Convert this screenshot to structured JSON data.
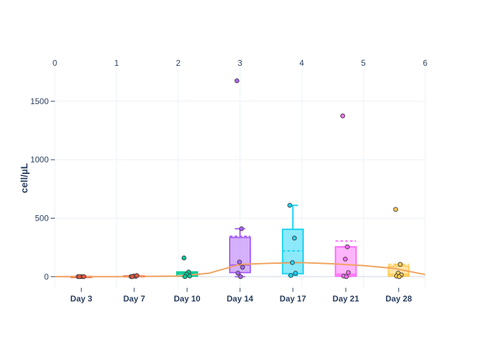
{
  "chart_data": {
    "type": "box",
    "xlabel": "",
    "ylabel": "cell/µL",
    "categories": [
      "Day 3",
      "Day 7",
      "Day 10",
      "Day 14",
      "Day 17",
      "Day 21",
      "Day 28"
    ],
    "ylim": [
      -95,
      1780
    ],
    "y_ticks": [
      0,
      500,
      1000,
      1500
    ],
    "y_tick_labels": [
      "0",
      "500",
      "1000",
      "1500"
    ],
    "secondary_x": {
      "range": [
        0,
        6
      ],
      "ticks": [
        0,
        1,
        2,
        3,
        4,
        5,
        6
      ],
      "tick_labels": [
        "0",
        "1",
        "2",
        "3",
        "4",
        "5",
        "6"
      ]
    },
    "grid": true,
    "series": [
      {
        "category": "Day 3",
        "color": "#ef553b",
        "q1": 0,
        "median": 0,
        "q3": 0,
        "lower_fence": 0,
        "upper_fence": 0,
        "mean": 0,
        "points": [
          0,
          0,
          0,
          0,
          0
        ]
      },
      {
        "category": "Day 7",
        "color": "#ef553b",
        "q1": 0,
        "median": 2,
        "q3": 6,
        "lower_fence": 0,
        "upper_fence": 10,
        "mean": 4,
        "points": [
          0,
          2,
          5,
          10,
          0
        ]
      },
      {
        "category": "Day 10",
        "color": "#00cc96",
        "q1": 5,
        "median": 25,
        "q3": 40,
        "lower_fence": 0,
        "upper_fence": 40,
        "mean": 30,
        "points": [
          160,
          40,
          20,
          5,
          0
        ]
      },
      {
        "category": "Day 14",
        "color": "#ab63fa",
        "q1": 35,
        "median": 100,
        "q3": 335,
        "lower_fence": 0,
        "upper_fence": 410,
        "mean": 345,
        "points": [
          1675,
          410,
          125,
          80,
          30,
          0
        ]
      },
      {
        "category": "Day 17",
        "color": "#19d3f3",
        "q1": 25,
        "median": 120,
        "q3": 405,
        "lower_fence": 10,
        "upper_fence": 610,
        "mean": 220,
        "points": [
          610,
          330,
          120,
          30,
          10
        ]
      },
      {
        "category": "Day 21",
        "color": "#ff6bfa",
        "q1": 5,
        "median": 20,
        "q3": 255,
        "lower_fence": 0,
        "upper_fence": 255,
        "mean": 305,
        "points": [
          1375,
          255,
          150,
          35,
          5,
          0
        ]
      },
      {
        "category": "Day 28",
        "color": "#fecb52",
        "q1": 5,
        "median": 20,
        "q3": 90,
        "lower_fence": 0,
        "upper_fence": 105,
        "mean": 105,
        "points": [
          575,
          105,
          30,
          15,
          5,
          0
        ]
      }
    ],
    "trend_line": {
      "color": "#f2a15b",
      "x": [
        0,
        0.5,
        1,
        1.5,
        2,
        2.5,
        3,
        3.5,
        4,
        4.5,
        5,
        5.5,
        6
      ],
      "y": [
        0,
        0,
        0,
        2,
        5,
        30,
        105,
        115,
        120,
        110,
        95,
        70,
        18
      ]
    }
  }
}
